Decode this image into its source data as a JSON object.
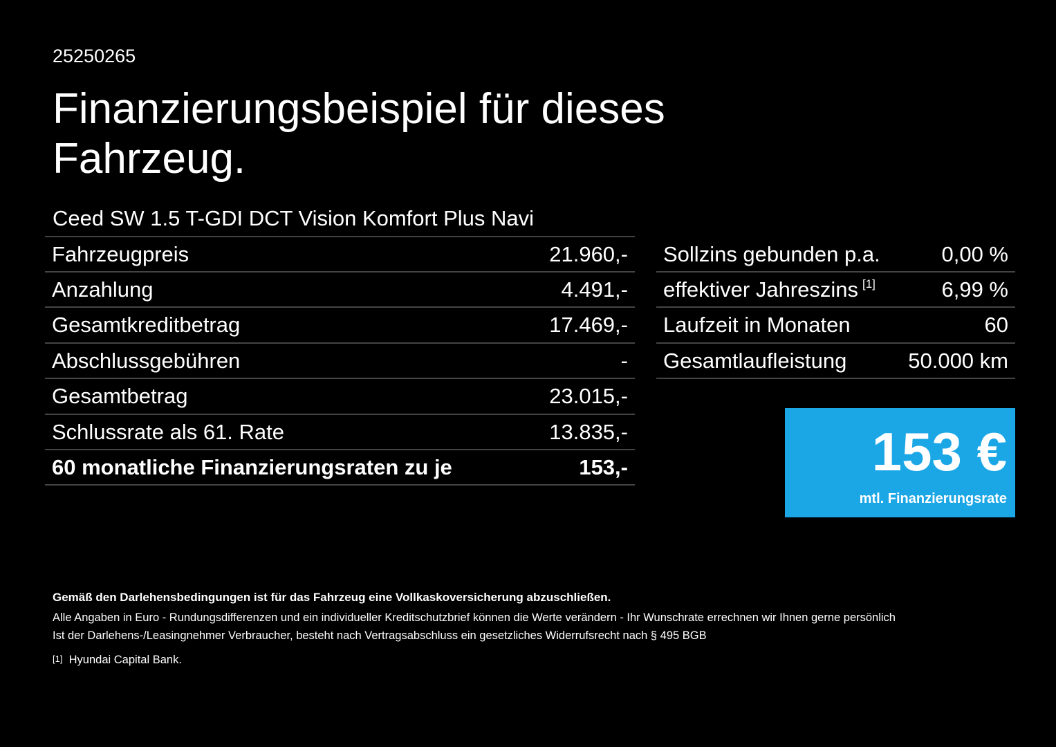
{
  "header": {
    "id": "25250265",
    "title_line1": "Finanzierungsbeispiel für dieses",
    "title_line2": "Fahrzeug."
  },
  "model": "Ceed SW 1.5 T-GDI DCT Vision Komfort Plus Navi",
  "left_table": {
    "rows": [
      [
        "Fahrzeugpreis",
        "21.960,-"
      ],
      [
        "Anzahlung",
        "4.491,-"
      ],
      [
        "Gesamtkreditbetrag",
        "17.469,-"
      ],
      [
        "Abschlussgebühren",
        "-"
      ],
      [
        "Gesamtbetrag",
        "23.015,-"
      ],
      [
        "Schlussrate als 61. Rate",
        "13.835,-"
      ],
      [
        "60 monatliche Finanzierungsraten zu je",
        "153,-"
      ]
    ]
  },
  "right_table": {
    "rows": [
      [
        "Sollzins gebunden p.a.",
        "0,00 %"
      ],
      [
        "effektiver Jahreszins",
        "6,99 %"
      ],
      [
        "Laufzeit in Monaten",
        "60"
      ],
      [
        "Gesamtlaufleistung",
        "50.000 km"
      ]
    ],
    "footnote_mark": "[1]"
  },
  "rate_box": {
    "amount": "153 €",
    "label": "mtl. Finanzierungsrate"
  },
  "footer": {
    "bold_note": "Gemäß den Darlehensbedingungen ist für das Fahrzeug eine Vollkaskoversicherung abzuschließen.",
    "line1": "Alle Angaben in Euro - Rundungsdifferenzen und ein individueller Kreditschutzbrief können die Werte verändern - Ihr Wunschrate errechnen wir Ihnen gerne persönlich",
    "line2": "Ist der Darlehens-/Leasingnehmer Verbraucher, besteht nach Vertragsabschluss ein gesetzliches Widerrufsrecht nach § 495 BGB",
    "footnote_mark": "[1]",
    "footnote": "Hyundai Capital Bank."
  }
}
